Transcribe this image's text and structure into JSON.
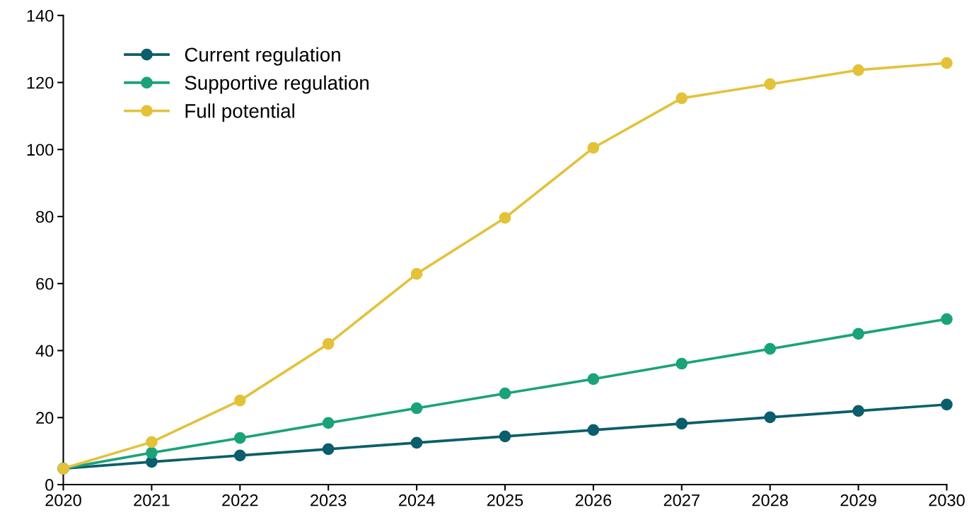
{
  "chart_data": {
    "type": "line",
    "x": [
      2020,
      2021,
      2022,
      2023,
      2024,
      2025,
      2026,
      2027,
      2028,
      2029,
      2030
    ],
    "series": [
      {
        "name": "Current regulation",
        "color": "#0b5e6b",
        "values": [
          4.8,
          6.8,
          8.7,
          10.6,
          12.5,
          14.4,
          16.3,
          18.2,
          20.1,
          22.0,
          23.9
        ]
      },
      {
        "name": "Supportive regulation",
        "color": "#1aa37a",
        "values": [
          4.8,
          9.5,
          13.9,
          18.4,
          22.8,
          27.2,
          31.5,
          36.1,
          40.5,
          45.0,
          49.4
        ]
      },
      {
        "name": "Full potential",
        "color": "#e3c23a",
        "values": [
          4.8,
          12.7,
          25.1,
          42.0,
          62.9,
          79.6,
          100.5,
          115.3,
          119.5,
          123.7,
          125.8
        ]
      }
    ],
    "xlim": [
      2020,
      2030
    ],
    "xticks": [
      2020,
      2021,
      2022,
      2023,
      2024,
      2025,
      2026,
      2027,
      2028,
      2029,
      2030
    ],
    "ylim": [
      0,
      140
    ],
    "yticks": [
      0,
      20,
      40,
      60,
      80,
      100,
      120,
      140
    ],
    "grid": false,
    "legend": "top left",
    "marker": "circle",
    "line_style": "solid"
  }
}
